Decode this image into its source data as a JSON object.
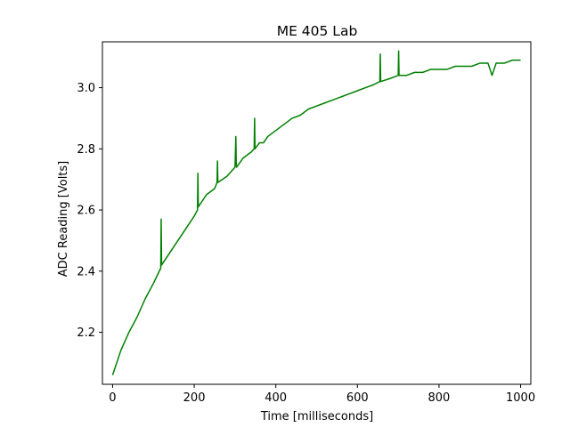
{
  "chart_data": {
    "type": "line",
    "title": "ME 405 Lab",
    "xlabel": "Time [milliseconds]",
    "ylabel": "ADC Reading [Volts]",
    "xlim": [
      -25,
      1025
    ],
    "ylim": [
      2.03,
      3.15
    ],
    "xticks": [
      0,
      200,
      400,
      600,
      800,
      1000
    ],
    "yticks": [
      2.2,
      2.4,
      2.6,
      2.8,
      3.0
    ],
    "xtick_labels": [
      "0",
      "200",
      "400",
      "600",
      "800",
      "1000"
    ],
    "ytick_labels": [
      "2.2",
      "2.4",
      "2.6",
      "2.8",
      "3.0"
    ],
    "grid": false,
    "series": [
      {
        "color": "#008000",
        "x": [
          0,
          20,
          40,
          60,
          80,
          100,
          118,
          119,
          120,
          140,
          160,
          180,
          200,
          208,
          209,
          210,
          230,
          250,
          256,
          257,
          258,
          280,
          300,
          302,
          303,
          304,
          320,
          340,
          347,
          348,
          349,
          360,
          370,
          380,
          400,
          420,
          440,
          460,
          480,
          500,
          520,
          540,
          560,
          580,
          600,
          620,
          640,
          655,
          656,
          657,
          680,
          700,
          701,
          702,
          720,
          740,
          760,
          780,
          800,
          820,
          840,
          860,
          880,
          900,
          920,
          930,
          940,
          960,
          980,
          1000
        ],
        "y": [
          2.06,
          2.14,
          2.2,
          2.25,
          2.31,
          2.36,
          2.41,
          2.57,
          2.42,
          2.46,
          2.5,
          2.54,
          2.58,
          2.6,
          2.72,
          2.61,
          2.65,
          2.67,
          2.69,
          2.76,
          2.69,
          2.71,
          2.74,
          2.84,
          2.75,
          2.74,
          2.77,
          2.79,
          2.8,
          2.9,
          2.8,
          2.82,
          2.82,
          2.84,
          2.86,
          2.88,
          2.9,
          2.91,
          2.93,
          2.94,
          2.95,
          2.96,
          2.97,
          2.98,
          2.99,
          3.0,
          3.01,
          3.02,
          3.11,
          3.02,
          3.03,
          3.04,
          3.12,
          3.04,
          3.04,
          3.05,
          3.05,
          3.06,
          3.06,
          3.06,
          3.07,
          3.07,
          3.07,
          3.08,
          3.08,
          3.04,
          3.08,
          3.08,
          3.09,
          3.09
        ]
      }
    ]
  }
}
